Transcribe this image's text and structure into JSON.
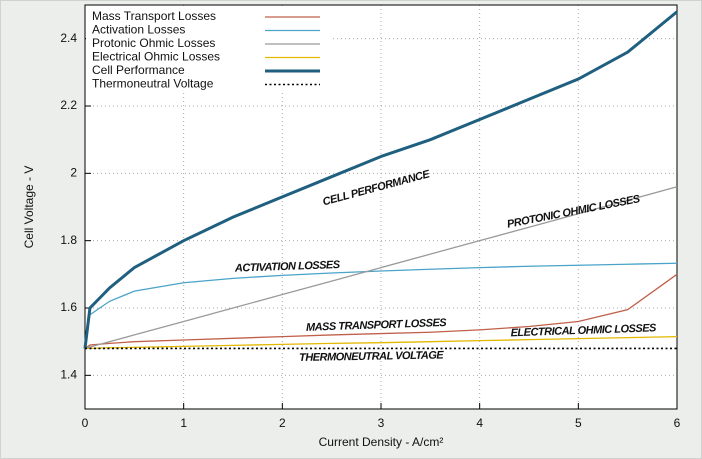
{
  "chart_data": {
    "type": "line",
    "x_label": "Current Density - A/cm²",
    "y_label": "Cell Voltage - V",
    "xlim": [
      0,
      6
    ],
    "ylim": [
      1.3,
      2.5
    ],
    "xticks": [
      0,
      1,
      2,
      3,
      4,
      5,
      6
    ],
    "yticks": [
      1.4,
      1.6,
      1.8,
      2,
      2.2,
      2.4
    ],
    "grid": true,
    "legend": "top-left",
    "x": [
      0,
      0.05,
      0.25,
      0.5,
      1,
      1.5,
      2,
      2.5,
      3,
      3.5,
      4,
      4.5,
      5,
      5.5,
      6
    ],
    "series": [
      {
        "name": "Mass Transport Losses",
        "color": "#c0604a",
        "values": [
          1.48,
          1.49,
          1.495,
          1.5,
          1.505,
          1.51,
          1.515,
          1.52,
          1.524,
          1.528,
          1.535,
          1.545,
          1.56,
          1.595,
          1.7
        ]
      },
      {
        "name": "Activation Losses",
        "color": "#4aa3c8",
        "values": [
          1.48,
          1.58,
          1.62,
          1.65,
          1.675,
          1.688,
          1.697,
          1.704,
          1.71,
          1.715,
          1.72,
          1.724,
          1.727,
          1.73,
          1.733
        ]
      },
      {
        "name": "Protonic Ohmic Losses",
        "color": "#9a9a9a",
        "values": [
          1.48,
          1.484,
          1.5,
          1.52,
          1.56,
          1.6,
          1.64,
          1.68,
          1.72,
          1.76,
          1.8,
          1.84,
          1.88,
          1.92,
          1.96
        ]
      },
      {
        "name": "Electrical Ohmic Losses",
        "color": "#e2b800",
        "values": [
          1.48,
          1.48,
          1.482,
          1.483,
          1.486,
          1.489,
          1.492,
          1.495,
          1.497,
          1.5,
          1.503,
          1.506,
          1.509,
          1.512,
          1.515
        ]
      },
      {
        "name": "Cell Performance",
        "color": "#1f5f80",
        "values": [
          1.48,
          1.6,
          1.66,
          1.72,
          1.8,
          1.87,
          1.93,
          1.99,
          2.05,
          2.1,
          2.16,
          2.22,
          2.28,
          2.36,
          2.48
        ]
      },
      {
        "name": "Thermoneutral Voltage",
        "color": "#000000",
        "values": [
          1.48,
          1.48,
          1.48,
          1.48,
          1.48,
          1.48,
          1.48,
          1.48,
          1.48,
          1.48,
          1.48,
          1.48,
          1.48,
          1.48,
          1.48
        ]
      }
    ],
    "annotations": [
      "CELL PERFORMANCE",
      "PROTONIC OHMIC LOSSES",
      "ACTIVATION LOSSES",
      "MASS TRANSPORT LOSSES",
      "ELECTRICAL OHMIC LOSSES",
      "THERMONEUTRAL VOLTAGE"
    ]
  }
}
